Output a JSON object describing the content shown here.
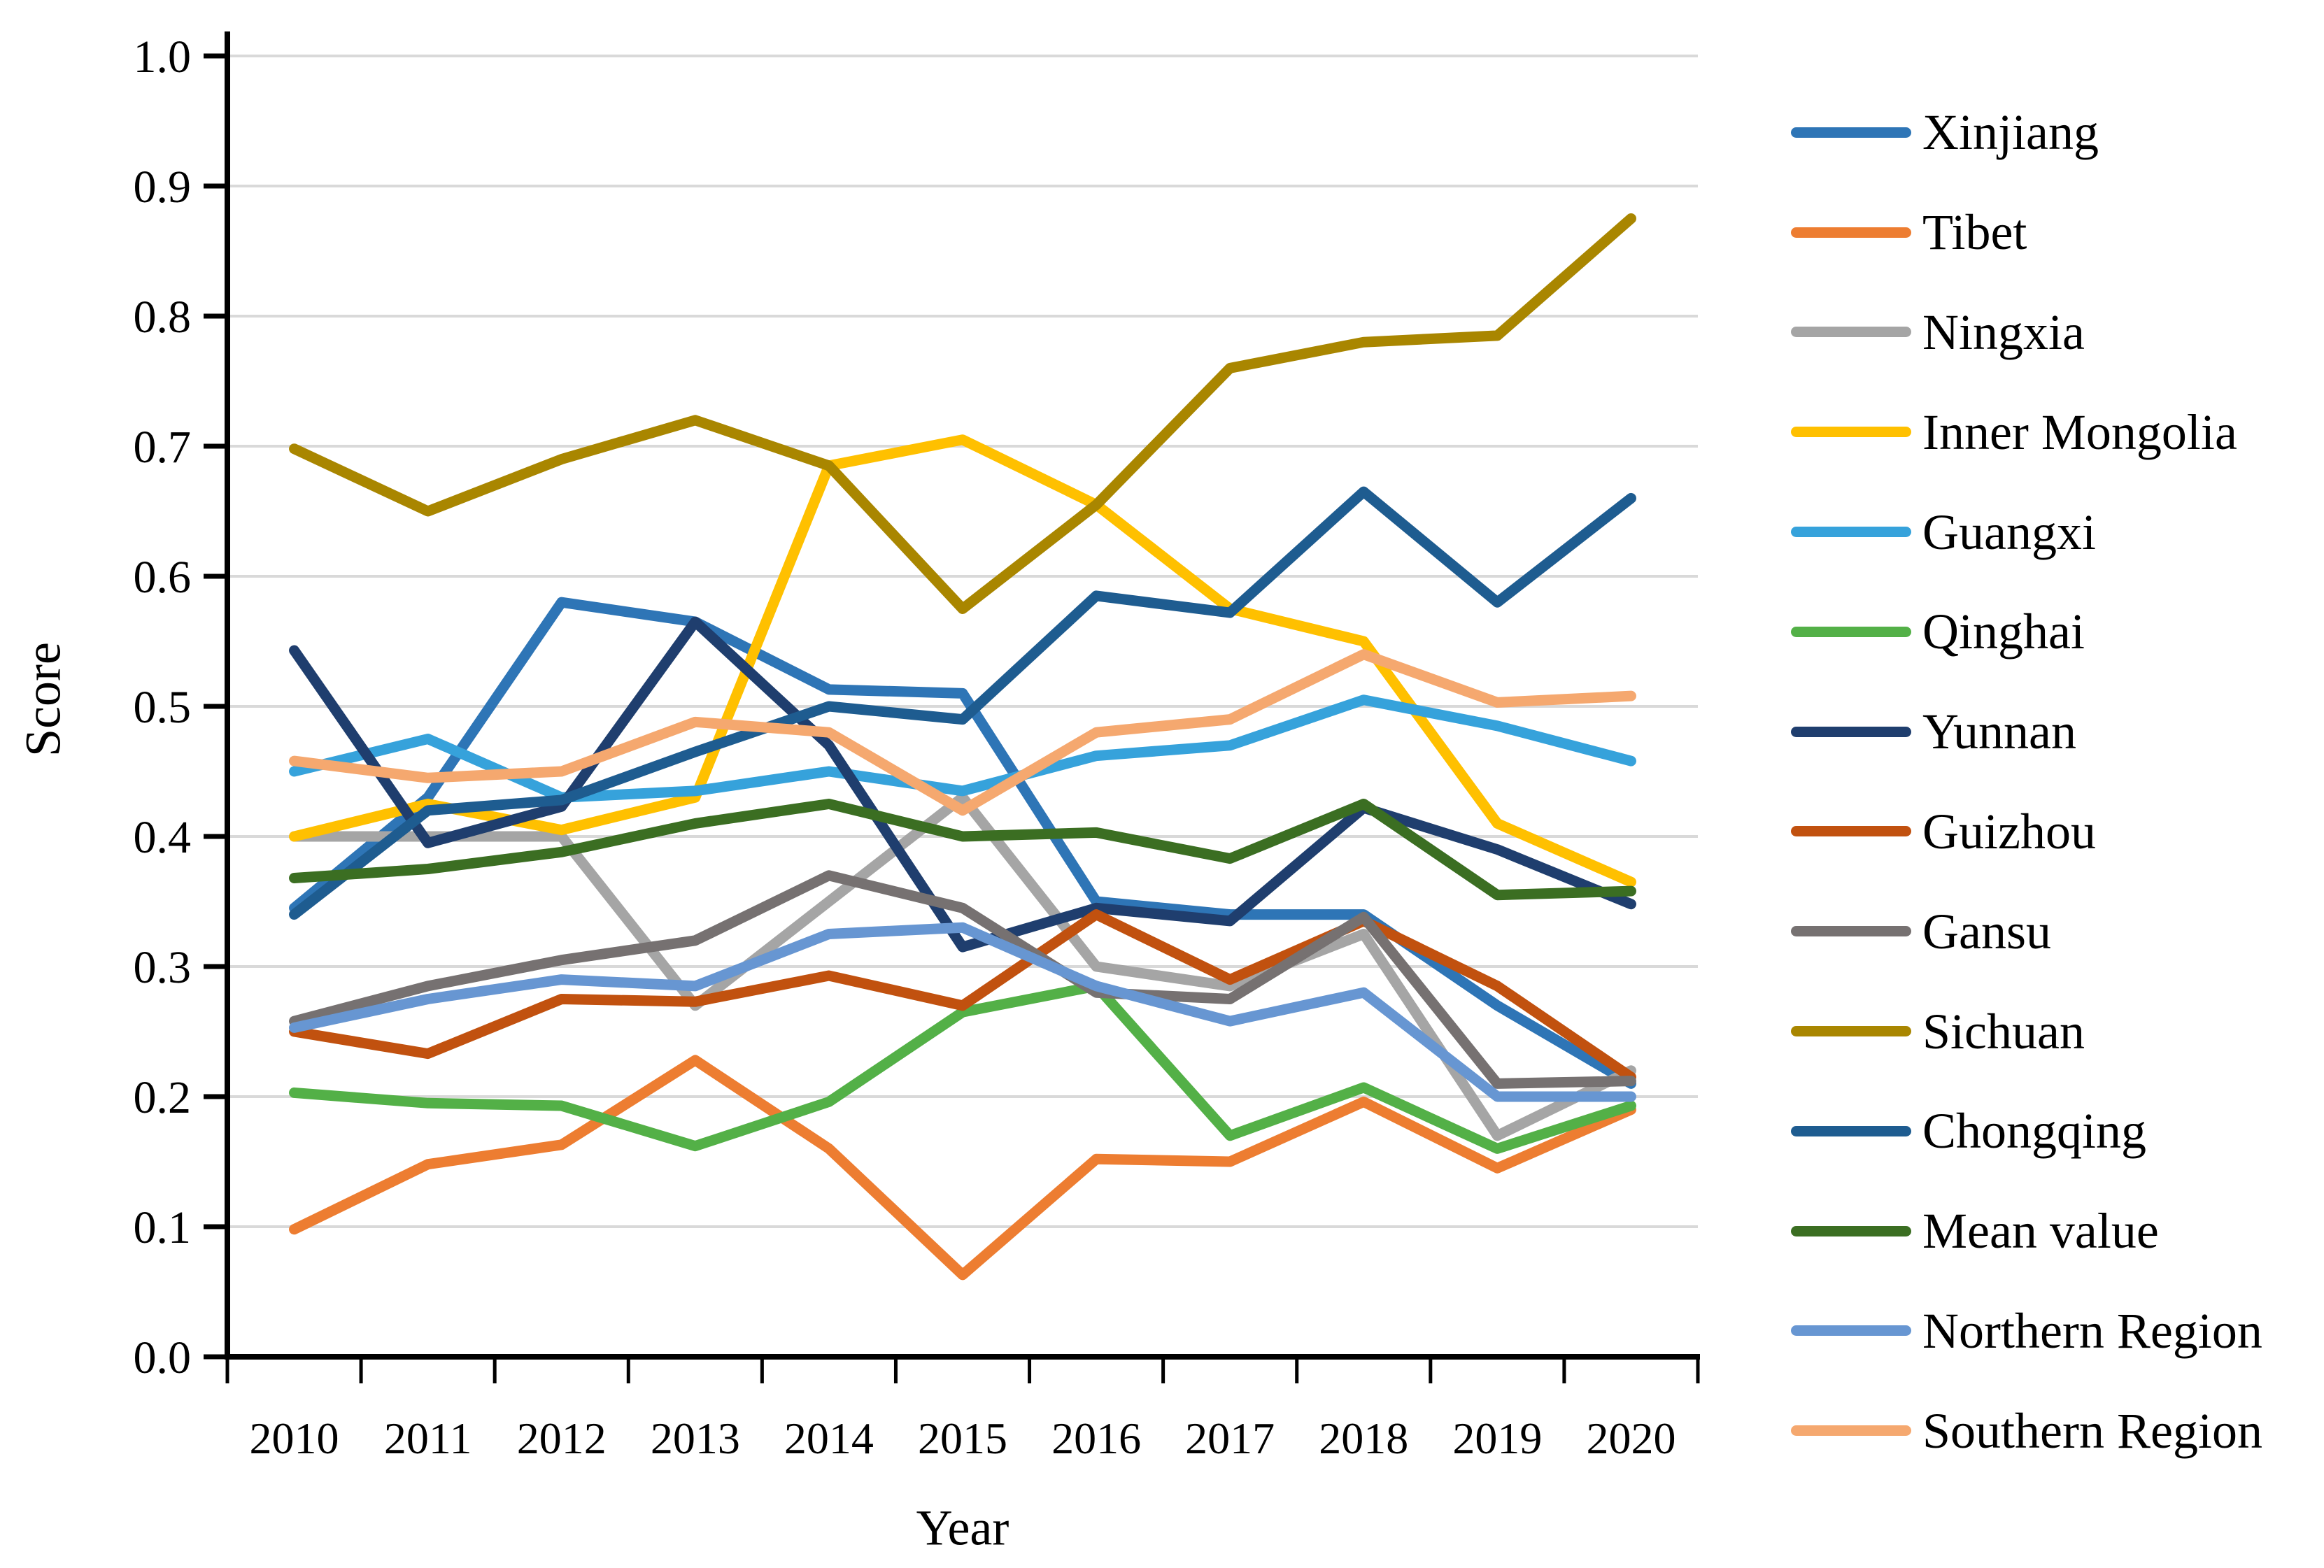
{
  "figure": {
    "background": "#ffffff",
    "axis_color": "#000000",
    "tick_label_fontsize": 66,
    "xtick_label_fontsize": 64
  },
  "chart_data": {
    "type": "line",
    "title": "",
    "xlabel": "Year",
    "ylabel": "Score",
    "x": [
      2010,
      2011,
      2012,
      2013,
      2014,
      2015,
      2016,
      2017,
      2018,
      2019,
      2020
    ],
    "ylim": [
      0.0,
      1.0
    ],
    "ytick_step": 0.1,
    "ytick_labels": [
      "0.0",
      "0.1",
      "0.2",
      "0.3",
      "0.4",
      "0.5",
      "0.6",
      "0.7",
      "0.8",
      "0.9",
      "1.0"
    ],
    "grid": "horizontal",
    "gridline_color": "#d9d9d9",
    "legend_position": "right",
    "series": [
      {
        "name": "Xinjiang",
        "color": "#2E75B6",
        "values": [
          0.345,
          0.43,
          0.58,
          0.565,
          0.513,
          0.51,
          0.35,
          0.34,
          0.34,
          0.27,
          0.21
        ]
      },
      {
        "name": "Tibet",
        "color": "#ED7D31",
        "values": [
          0.098,
          0.148,
          0.163,
          0.228,
          0.16,
          0.063,
          0.152,
          0.15,
          0.196,
          0.145,
          0.19
        ]
      },
      {
        "name": "Ningxia",
        "color": "#A5A5A5",
        "values": [
          0.4,
          0.4,
          0.4,
          0.27,
          0.35,
          0.43,
          0.3,
          0.285,
          0.325,
          0.17,
          0.22
        ]
      },
      {
        "name": "Inner Mongolia",
        "color": "#FFC000",
        "values": [
          0.4,
          0.425,
          0.405,
          0.43,
          0.685,
          0.705,
          0.655,
          0.575,
          0.55,
          0.41,
          0.365
        ]
      },
      {
        "name": "Guangxi",
        "color": "#36A2DB",
        "values": [
          0.45,
          0.475,
          0.43,
          0.435,
          0.45,
          0.435,
          0.462,
          0.47,
          0.505,
          0.485,
          0.458
        ]
      },
      {
        "name": "Qinghai",
        "color": "#53B047",
        "values": [
          0.203,
          0.195,
          0.193,
          0.162,
          0.196,
          0.265,
          0.285,
          0.17,
          0.207,
          0.16,
          0.193
        ]
      },
      {
        "name": "Yunnan",
        "color": "#1F3E6E",
        "values": [
          0.543,
          0.395,
          0.423,
          0.565,
          0.47,
          0.315,
          0.345,
          0.335,
          0.422,
          0.39,
          0.348
        ]
      },
      {
        "name": "Guizhou",
        "color": "#C1510F",
        "values": [
          0.25,
          0.233,
          0.275,
          0.273,
          0.293,
          0.27,
          0.34,
          0.29,
          0.335,
          0.285,
          0.215
        ]
      },
      {
        "name": "Gansu",
        "color": "#767171",
        "values": [
          0.258,
          0.285,
          0.305,
          0.32,
          0.37,
          0.345,
          0.28,
          0.275,
          0.338,
          0.21,
          0.212
        ]
      },
      {
        "name": "Sichuan",
        "color": "#A98600",
        "values": [
          0.698,
          0.65,
          0.69,
          0.72,
          0.685,
          0.575,
          0.655,
          0.76,
          0.78,
          0.785,
          0.875
        ]
      },
      {
        "name": "Chongqing",
        "color": "#1E5C90",
        "values": [
          0.34,
          0.42,
          0.428,
          0.465,
          0.5,
          0.49,
          0.585,
          0.572,
          0.665,
          0.58,
          0.66
        ]
      },
      {
        "name": "Mean value",
        "color": "#3B6E22",
        "values": [
          0.368,
          0.375,
          0.388,
          0.41,
          0.425,
          0.4,
          0.403,
          0.383,
          0.425,
          0.355,
          0.358
        ]
      },
      {
        "name": "Northern Region",
        "color": "#6796D2",
        "values": [
          0.253,
          0.275,
          0.29,
          0.285,
          0.325,
          0.33,
          0.285,
          0.258,
          0.28,
          0.2,
          0.2
        ]
      },
      {
        "name": "Southern Region",
        "color": "#F5A86F",
        "values": [
          0.458,
          0.445,
          0.45,
          0.488,
          0.48,
          0.42,
          0.48,
          0.49,
          0.54,
          0.503,
          0.508
        ]
      }
    ]
  }
}
